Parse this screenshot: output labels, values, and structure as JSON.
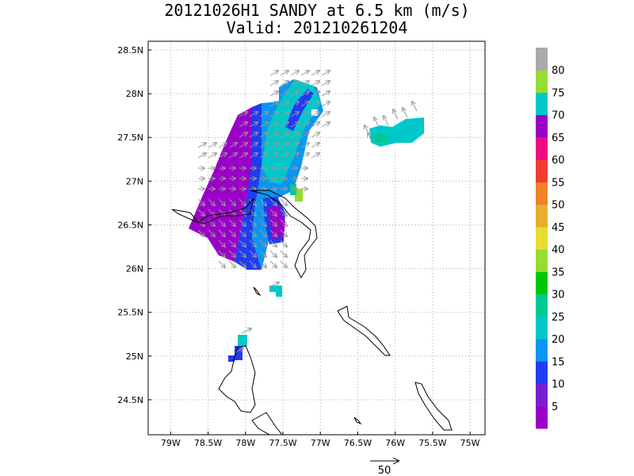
{
  "title": {
    "line1": "20121026H1 SANDY at 6.5 km (m/s)",
    "line2": "Valid: 201210261204"
  },
  "map": {
    "lon_range": [
      -79.3,
      -74.8
    ],
    "lat_range": [
      24.1,
      28.6
    ],
    "x_ticks": [
      -79,
      -78.5,
      -78,
      -77.5,
      -77,
      -76.5,
      -76,
      -75.5,
      -75
    ],
    "x_tick_labels": [
      "79W",
      "78.5W",
      "78W",
      "77.5W",
      "77W",
      "76.5W",
      "76W",
      "75.5W",
      "75W"
    ],
    "y_ticks": [
      28.5,
      28,
      27.5,
      27,
      26.5,
      26,
      25.5,
      25,
      24.5
    ],
    "y_tick_labels": [
      "28.5N",
      "28N",
      "27.5N",
      "27N",
      "26.5N",
      "26N",
      "25.5N",
      "25N",
      "24.5N"
    ],
    "grid": "dotted"
  },
  "colorbar": {
    "labels": [
      "5",
      "10",
      "15",
      "20",
      "25",
      "30",
      "35",
      "40",
      "45",
      "50",
      "55",
      "60",
      "65",
      "70",
      "75",
      "80"
    ],
    "colors": [
      "#9b00c8",
      "#7a1fd0",
      "#1f3cf0",
      "#0a96f0",
      "#00c8c8",
      "#00c896",
      "#00c800",
      "#96dc32",
      "#e6dc32",
      "#e6af2d",
      "#f08228",
      "#f03c32",
      "#f00a82",
      "#9b00c8",
      "#00c8c8",
      "#96dc32",
      "#aaaaaa"
    ]
  },
  "vector_scale": {
    "label": "50"
  }
}
